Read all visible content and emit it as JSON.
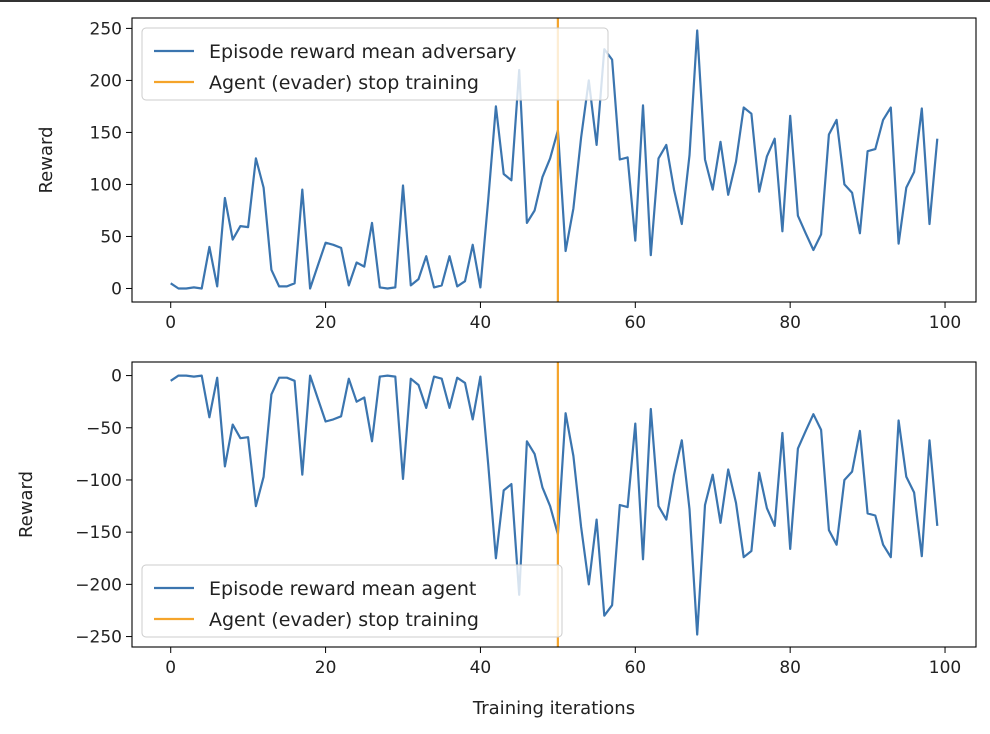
{
  "chart_data": [
    {
      "type": "line",
      "xlabel": "",
      "ylabel": "Reward",
      "xlim": [
        -5,
        104
      ],
      "ylim": [
        -13,
        260
      ],
      "xticks": [
        0,
        20,
        40,
        60,
        80,
        100
      ],
      "yticks": [
        0,
        50,
        100,
        150,
        200,
        250
      ],
      "grid": false,
      "legend": "upper-left",
      "series": [
        {
          "name": "Episode reward mean adversary",
          "color": "#3b75af",
          "x": [
            0,
            1,
            2,
            3,
            4,
            5,
            6,
            7,
            8,
            9,
            10,
            11,
            12,
            13,
            14,
            15,
            16,
            17,
            18,
            19,
            20,
            21,
            22,
            23,
            24,
            25,
            26,
            27,
            28,
            29,
            30,
            31,
            32,
            33,
            34,
            35,
            36,
            37,
            38,
            39,
            40,
            41,
            42,
            43,
            44,
            45,
            46,
            47,
            48,
            49,
            50,
            51,
            52,
            53,
            54,
            55,
            56,
            57,
            58,
            59,
            60,
            61,
            62,
            63,
            64,
            65,
            66,
            67,
            68,
            69,
            70,
            71,
            72,
            73,
            74,
            75,
            76,
            77,
            78,
            79,
            80,
            81,
            82,
            83,
            84,
            85,
            86,
            87,
            88,
            89,
            90,
            91,
            92,
            93,
            94,
            95,
            96,
            97,
            98,
            99
          ],
          "values": [
            5,
            0,
            0,
            1,
            0,
            40,
            2,
            87,
            47,
            60,
            59,
            125,
            97,
            18,
            2,
            2,
            5,
            95,
            0,
            22,
            44,
            42,
            39,
            3,
            25,
            21,
            63,
            1,
            0,
            1,
            99,
            3,
            9,
            31,
            1,
            3,
            31,
            2,
            7,
            42,
            1,
            85,
            175,
            110,
            104,
            210,
            63,
            75,
            107,
            125,
            152,
            36,
            77,
            145,
            200,
            138,
            230,
            220,
            124,
            126,
            46,
            176,
            32,
            125,
            138,
            95,
            62,
            128,
            248,
            124,
            95,
            141,
            90,
            122,
            174,
            168,
            93,
            127,
            144,
            55,
            166,
            70,
            53,
            37,
            52,
            148,
            162,
            100,
            92,
            53,
            132,
            134,
            162,
            174,
            43,
            97,
            112,
            173,
            62,
            144
          ]
        },
        {
          "name": "Agent (evader) stop training",
          "color": "#f5a42a",
          "vline_x": 50
        }
      ]
    },
    {
      "type": "line",
      "xlabel": "Training iterations",
      "ylabel": "Reward",
      "xlim": [
        -5,
        104
      ],
      "ylim": [
        -260,
        13
      ],
      "xticks": [
        0,
        20,
        40,
        60,
        80,
        100
      ],
      "yticks": [
        0,
        -50,
        -100,
        -150,
        -200,
        -250
      ],
      "grid": false,
      "legend": "lower-left",
      "series": [
        {
          "name": "Episode reward mean agent",
          "color": "#3b75af",
          "x": [
            0,
            1,
            2,
            3,
            4,
            5,
            6,
            7,
            8,
            9,
            10,
            11,
            12,
            13,
            14,
            15,
            16,
            17,
            18,
            19,
            20,
            21,
            22,
            23,
            24,
            25,
            26,
            27,
            28,
            29,
            30,
            31,
            32,
            33,
            34,
            35,
            36,
            37,
            38,
            39,
            40,
            41,
            42,
            43,
            44,
            45,
            46,
            47,
            48,
            49,
            50,
            51,
            52,
            53,
            54,
            55,
            56,
            57,
            58,
            59,
            60,
            61,
            62,
            63,
            64,
            65,
            66,
            67,
            68,
            69,
            70,
            71,
            72,
            73,
            74,
            75,
            76,
            77,
            78,
            79,
            80,
            81,
            82,
            83,
            84,
            85,
            86,
            87,
            88,
            89,
            90,
            91,
            92,
            93,
            94,
            95,
            96,
            97,
            98,
            99
          ],
          "values": [
            -5,
            0,
            0,
            -1,
            0,
            -40,
            -2,
            -87,
            -47,
            -60,
            -59,
            -125,
            -97,
            -18,
            -2,
            -2,
            -5,
            -95,
            0,
            -22,
            -44,
            -42,
            -39,
            -3,
            -25,
            -21,
            -63,
            -1,
            0,
            -1,
            -99,
            -3,
            -9,
            -31,
            -1,
            -3,
            -31,
            -2,
            -7,
            -42,
            -1,
            -85,
            -175,
            -110,
            -104,
            -210,
            -63,
            -75,
            -107,
            -125,
            -152,
            -36,
            -77,
            -145,
            -200,
            -138,
            -230,
            -220,
            -124,
            -126,
            -46,
            -176,
            -32,
            -125,
            -138,
            -95,
            -62,
            -128,
            -248,
            -124,
            -95,
            -141,
            -90,
            -122,
            -174,
            -168,
            -93,
            -127,
            -144,
            -55,
            -166,
            -70,
            -53,
            -37,
            -52,
            -148,
            -162,
            -100,
            -92,
            -53,
            -132,
            -134,
            -162,
            -174,
            -43,
            -97,
            -112,
            -173,
            -62,
            -144
          ]
        },
        {
          "name": "Agent (evader) stop training",
          "color": "#f5a42a",
          "vline_x": 50
        }
      ]
    }
  ]
}
